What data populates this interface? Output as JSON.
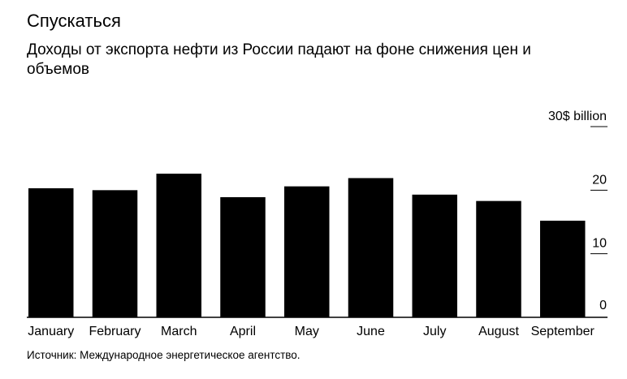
{
  "header": {
    "title": "Спускаться",
    "subtitle": "Доходы от экспорта нефти из России падают на фоне снижения цен и объемов"
  },
  "footer": {
    "source": "Источник: Международное энергетическое агентство."
  },
  "chart_data": {
    "type": "bar",
    "categories": [
      "January",
      "February",
      "March",
      "April",
      "May",
      "June",
      "July",
      "August",
      "September"
    ],
    "values": [
      20.3,
      20.0,
      22.6,
      18.9,
      20.6,
      21.9,
      19.3,
      18.3,
      15.2
    ],
    "ylim": [
      0,
      30
    ],
    "yticks": [
      0,
      10,
      20,
      30
    ],
    "ytick_labels": [
      "0",
      "10",
      "20",
      "30$ billion"
    ],
    "grid": false,
    "colors": {
      "bar": "#000000",
      "axis": "#000000",
      "tick": "#000000"
    }
  }
}
